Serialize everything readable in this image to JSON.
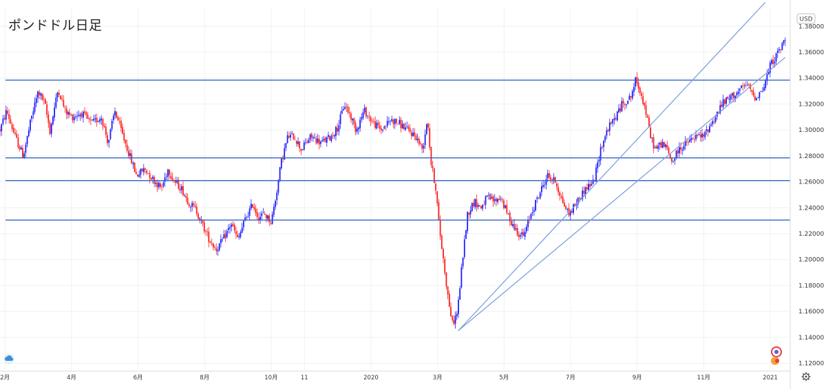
{
  "chart_data": {
    "type": "candlestick",
    "title": "ポンドドル日足",
    "currency_label": "USD",
    "y_ticks": [
      "1.12000",
      "1.14000",
      "1.16000",
      "1.18000",
      "1.20000",
      "1.22000",
      "1.24000",
      "1.26000",
      "1.28000",
      "1.30000",
      "1.32000",
      "1.34000",
      "1.36000",
      "1.38000"
    ],
    "ylim": [
      1.115,
      1.395
    ],
    "x_ticks": [
      {
        "label": "2月",
        "t": 0.0
      },
      {
        "label": "4月",
        "t": 2.0
      },
      {
        "label": "6月",
        "t": 4.0
      },
      {
        "label": "8月",
        "t": 6.0
      },
      {
        "label": "10月",
        "t": 8.0
      },
      {
        "label": "11",
        "t": 9.0
      },
      {
        "label": "2020",
        "t": 11.0
      },
      {
        "label": "3月",
        "t": 13.0
      },
      {
        "label": "5月",
        "t": 15.0
      },
      {
        "label": "7月",
        "t": 17.0
      },
      {
        "label": "9月",
        "t": 19.0
      },
      {
        "label": "11月",
        "t": 21.0
      },
      {
        "label": "2021",
        "t": 23.0
      }
    ],
    "xlim": [
      -0.15,
      23.6
    ],
    "horizontal_lines": [
      1.3385,
      1.2785,
      1.261,
      1.2305
    ],
    "trend_lines": [
      {
        "from": [
          13.62,
          1.145
        ],
        "to": [
          23.45,
          1.356
        ]
      },
      {
        "from": [
          13.62,
          1.145
        ],
        "to": [
          22.85,
          1.3985
        ]
      }
    ],
    "price_path": [
      [
        -0.15,
        1.3
      ],
      [
        0.05,
        1.315
      ],
      [
        0.3,
        1.295
      ],
      [
        0.55,
        1.28
      ],
      [
        0.8,
        1.31
      ],
      [
        1.0,
        1.33
      ],
      [
        1.2,
        1.32
      ],
      [
        1.35,
        1.299
      ],
      [
        1.6,
        1.332
      ],
      [
        1.8,
        1.315
      ],
      [
        2.0,
        1.31
      ],
      [
        2.3,
        1.313
      ],
      [
        2.6,
        1.305
      ],
      [
        2.9,
        1.31
      ],
      [
        3.1,
        1.29
      ],
      [
        3.3,
        1.315
      ],
      [
        3.55,
        1.295
      ],
      [
        3.75,
        1.28
      ],
      [
        3.95,
        1.265
      ],
      [
        4.2,
        1.27
      ],
      [
        4.45,
        1.262
      ],
      [
        4.7,
        1.255
      ],
      [
        4.9,
        1.27
      ],
      [
        5.1,
        1.26
      ],
      [
        5.3,
        1.255
      ],
      [
        5.5,
        1.245
      ],
      [
        5.75,
        1.238
      ],
      [
        5.95,
        1.226
      ],
      [
        6.15,
        1.215
      ],
      [
        6.35,
        1.208
      ],
      [
        6.55,
        1.215
      ],
      [
        6.8,
        1.228
      ],
      [
        7.0,
        1.215
      ],
      [
        7.2,
        1.23
      ],
      [
        7.45,
        1.243
      ],
      [
        7.6,
        1.233
      ],
      [
        7.8,
        1.235
      ],
      [
        8.0,
        1.229
      ],
      [
        8.15,
        1.25
      ],
      [
        8.3,
        1.275
      ],
      [
        8.5,
        1.295
      ],
      [
        8.7,
        1.295
      ],
      [
        8.9,
        1.285
      ],
      [
        9.2,
        1.295
      ],
      [
        9.5,
        1.29
      ],
      [
        9.8,
        1.295
      ],
      [
        10.0,
        1.302
      ],
      [
        10.2,
        1.32
      ],
      [
        10.4,
        1.31
      ],
      [
        10.55,
        1.3
      ],
      [
        10.8,
        1.315
      ],
      [
        11.05,
        1.306
      ],
      [
        11.3,
        1.3
      ],
      [
        11.6,
        1.308
      ],
      [
        11.85,
        1.305
      ],
      [
        12.1,
        1.3
      ],
      [
        12.35,
        1.295
      ],
      [
        12.55,
        1.285
      ],
      [
        12.7,
        1.31
      ],
      [
        12.8,
        1.275
      ],
      [
        12.95,
        1.255
      ],
      [
        13.05,
        1.225
      ],
      [
        13.2,
        1.195
      ],
      [
        13.32,
        1.17
      ],
      [
        13.45,
        1.15
      ],
      [
        13.6,
        1.16
      ],
      [
        13.75,
        1.2
      ],
      [
        13.9,
        1.235
      ],
      [
        14.1,
        1.245
      ],
      [
        14.3,
        1.24
      ],
      [
        14.5,
        1.248
      ],
      [
        14.7,
        1.245
      ],
      [
        14.9,
        1.248
      ],
      [
        15.1,
        1.235
      ],
      [
        15.3,
        1.225
      ],
      [
        15.45,
        1.22
      ],
      [
        15.6,
        1.218
      ],
      [
        15.8,
        1.235
      ],
      [
        16.05,
        1.25
      ],
      [
        16.3,
        1.265
      ],
      [
        16.55,
        1.26
      ],
      [
        16.75,
        1.245
      ],
      [
        16.95,
        1.235
      ],
      [
        17.2,
        1.245
      ],
      [
        17.45,
        1.255
      ],
      [
        17.7,
        1.26
      ],
      [
        17.9,
        1.285
      ],
      [
        18.1,
        1.3
      ],
      [
        18.35,
        1.31
      ],
      [
        18.55,
        1.32
      ],
      [
        18.8,
        1.325
      ],
      [
        18.95,
        1.338
      ],
      [
        19.1,
        1.33
      ],
      [
        19.25,
        1.315
      ],
      [
        19.4,
        1.295
      ],
      [
        19.55,
        1.285
      ],
      [
        19.75,
        1.29
      ],
      [
        19.9,
        1.285
      ],
      [
        20.05,
        1.275
      ],
      [
        20.25,
        1.285
      ],
      [
        20.5,
        1.29
      ],
      [
        20.8,
        1.295
      ],
      [
        21.0,
        1.295
      ],
      [
        21.15,
        1.302
      ],
      [
        21.35,
        1.31
      ],
      [
        21.55,
        1.32
      ],
      [
        21.8,
        1.325
      ],
      [
        22.05,
        1.33
      ],
      [
        22.3,
        1.335
      ],
      [
        22.55,
        1.325
      ],
      [
        22.8,
        1.332
      ],
      [
        23.0,
        1.35
      ],
      [
        23.2,
        1.358
      ],
      [
        23.35,
        1.365
      ],
      [
        23.45,
        1.37
      ]
    ],
    "up_color": "#1a1aff",
    "down_color": "#ff1a1a",
    "line_color": "#2f63c4",
    "grid": true
  }
}
